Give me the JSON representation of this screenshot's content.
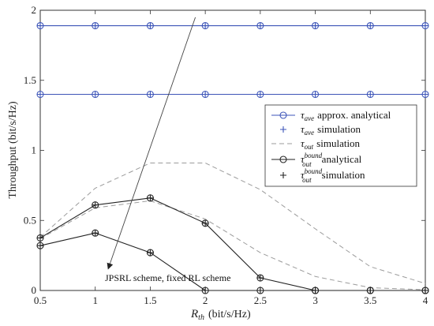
{
  "chart_data": {
    "type": "line",
    "x": [
      0.5,
      1,
      1.5,
      2,
      2.5,
      3,
      3.5,
      4
    ],
    "xlim": [
      0.5,
      4
    ],
    "ylim": [
      0,
      2
    ],
    "xticks": [
      "0.5",
      "1",
      "1.5",
      "2",
      "2.5",
      "3",
      "3.5",
      "4"
    ],
    "yticks": [
      "0",
      "0.5",
      "1",
      "1.5",
      "2"
    ],
    "xlabel_main": "R",
    "xlabel_sub": "th",
    "xlabel_unit": "(bit/s/Hz)",
    "ylabel": "Throughput (bit/s/Hz)",
    "grid": false,
    "legend_position": "right",
    "series": [
      {
        "group": "JPSRL",
        "style": "blue-circle-line",
        "values": [
          1.89,
          1.89,
          1.89,
          1.89,
          1.89,
          1.89,
          1.89,
          1.89
        ]
      },
      {
        "group": "JPSRL",
        "style": "blue-plus",
        "values": [
          1.89,
          1.89,
          1.89,
          1.89,
          1.89,
          1.89,
          1.89,
          1.89
        ]
      },
      {
        "group": "fixed",
        "style": "blue-circle-line",
        "values": [
          1.4,
          1.4,
          1.4,
          1.4,
          1.4,
          1.4,
          1.4,
          1.4
        ]
      },
      {
        "group": "fixed",
        "style": "blue-plus",
        "values": [
          1.4,
          1.4,
          1.4,
          1.4,
          1.4,
          1.4,
          1.4,
          1.4
        ]
      },
      {
        "group": "JPSRL",
        "style": "gray-dashed",
        "values": [
          0.38,
          0.73,
          0.91,
          0.91,
          0.72,
          0.44,
          0.17,
          0.05
        ]
      },
      {
        "group": "fixed",
        "style": "gray-dashed",
        "values": [
          0.37,
          0.59,
          0.64,
          0.51,
          0.27,
          0.1,
          0.02,
          0.005
        ]
      },
      {
        "group": "JPSRL",
        "style": "black-circle-line",
        "values": [
          0.375,
          0.61,
          0.66,
          0.48,
          0.09,
          0,
          0,
          0
        ]
      },
      {
        "group": "JPSRL",
        "style": "black-plus",
        "values": [
          0.375,
          0.61,
          0.66,
          0.48,
          0.09,
          0,
          0,
          0
        ]
      },
      {
        "group": "fixed",
        "style": "black-circle-line",
        "values": [
          0.32,
          0.41,
          0.27,
          0,
          0,
          0,
          0,
          0
        ]
      },
      {
        "group": "fixed",
        "style": "black-plus",
        "values": [
          0.32,
          0.41,
          0.27,
          0,
          0,
          0,
          0,
          0
        ]
      }
    ],
    "legend": [
      {
        "marker": "blue-circle-line",
        "sym": "τ",
        "sub": "ave",
        "sup": "",
        "text": "approx. analytical"
      },
      {
        "marker": "blue-plus",
        "sym": "τ",
        "sub": "ave",
        "sup": "",
        "text": "simulation"
      },
      {
        "marker": "gray-dashed",
        "sym": "τ",
        "sub": "out",
        "sup": "",
        "text": "simulation"
      },
      {
        "marker": "black-circle-line",
        "sym": "τ",
        "sub": "out",
        "sup": "bound",
        "text": "analytical"
      },
      {
        "marker": "black-plus",
        "sym": "τ",
        "sub": "out",
        "sup": "bound",
        "text": "simulation"
      }
    ],
    "annotation": {
      "text": "JPSRL scheme, fixed RL scheme",
      "arrow_from": [
        1.91,
        1.95
      ],
      "arrow_to": [
        1.12,
        0.16
      ]
    }
  },
  "colors": {
    "blue": "#3d55b8",
    "gray": "#9b9b9b",
    "black": "#222222",
    "axis": "#333333"
  }
}
